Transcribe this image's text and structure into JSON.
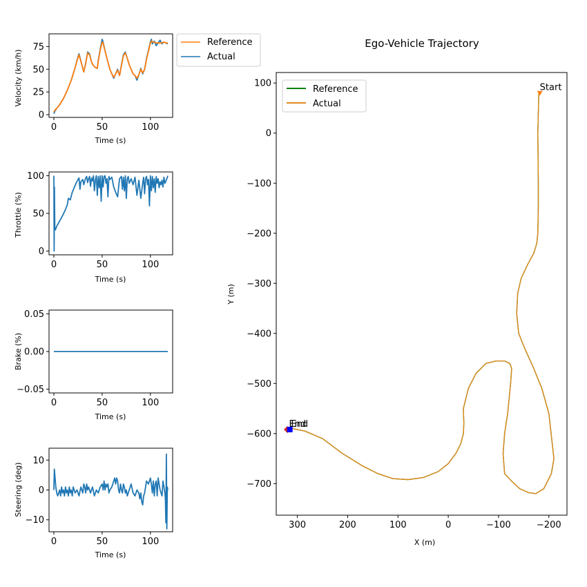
{
  "colors": {
    "reference": "#ff7f0e",
    "actual": "#1f77b4",
    "ref_traj": "#008000",
    "act_traj": "#e08a1e",
    "start_marker": "#ff7f0e",
    "end_actual": "#0000ff",
    "end_ref": "#d62728"
  },
  "chart_data": [
    {
      "type": "line",
      "id": "velocity",
      "title": "",
      "xlabel": "Time (s)",
      "ylabel": "Velocity (km/h)",
      "xlim": [
        -5,
        123
      ],
      "ylim": [
        -3,
        89
      ],
      "xticks": [
        0,
        50,
        100
      ],
      "yticks": [
        0,
        25,
        50,
        75
      ],
      "legend": [
        "Reference",
        "Actual"
      ],
      "series": [
        {
          "name": "Actual",
          "x": [
            0,
            1,
            3,
            6,
            10,
            14,
            18,
            22,
            25,
            26,
            27,
            29,
            31,
            33,
            35,
            37,
            39,
            41,
            43,
            45,
            46,
            48,
            50,
            51,
            52,
            54,
            56,
            58,
            60,
            62,
            64,
            66,
            68,
            70,
            72,
            74,
            76,
            78,
            80,
            82,
            84,
            86,
            88,
            90,
            92,
            94,
            96,
            98,
            100,
            101,
            102,
            104,
            106,
            108,
            110,
            112,
            114,
            116,
            118
          ],
          "y": [
            1,
            4,
            7,
            11,
            18,
            27,
            38,
            52,
            64,
            67,
            63,
            55,
            47,
            57,
            69,
            67,
            58,
            54,
            52,
            51,
            60,
            72,
            83,
            80,
            75,
            66,
            58,
            50,
            45,
            40,
            45,
            50,
            43,
            55,
            66,
            69,
            62,
            55,
            50,
            45,
            43,
            38,
            44,
            51,
            45,
            50,
            62,
            71,
            80,
            83,
            78,
            81,
            76,
            79,
            82,
            78,
            80,
            79,
            78
          ]
        },
        {
          "name": "Reference",
          "x": [
            0,
            1,
            3,
            6,
            10,
            14,
            18,
            22,
            25,
            26,
            27,
            29,
            31,
            33,
            35,
            37,
            39,
            41,
            43,
            45,
            46,
            48,
            50,
            51,
            52,
            54,
            56,
            58,
            60,
            62,
            64,
            66,
            68,
            70,
            72,
            74,
            76,
            78,
            80,
            82,
            84,
            86,
            88,
            90,
            92,
            94,
            96,
            98,
            100,
            101,
            102,
            104,
            106,
            108,
            110,
            112,
            114,
            116,
            118
          ],
          "y": [
            3,
            5,
            7,
            11,
            18,
            27,
            38,
            52,
            63,
            66,
            62,
            55,
            47,
            56,
            68,
            66,
            58,
            54,
            52,
            51,
            59,
            71,
            80,
            79,
            74,
            66,
            58,
            50,
            45,
            41,
            45,
            49,
            43,
            54,
            65,
            68,
            62,
            55,
            50,
            45,
            43,
            40,
            44,
            50,
            46,
            50,
            61,
            70,
            79,
            81,
            80,
            80,
            79,
            79,
            79,
            79,
            80,
            79,
            79
          ]
        }
      ]
    },
    {
      "type": "line",
      "id": "throttle",
      "xlabel": "Time (s)",
      "ylabel": "Throttle (%)",
      "xlim": [
        -5,
        123
      ],
      "ylim": [
        -5,
        105
      ],
      "xticks": [
        0,
        50,
        100
      ],
      "yticks": [
        0,
        50,
        100
      ],
      "series": [
        {
          "name": "Actual",
          "x": [
            0,
            0.3,
            0.6,
            1,
            1.5,
            3,
            6,
            9,
            12,
            14,
            15,
            17,
            19,
            21,
            23,
            25,
            26,
            27,
            28,
            30,
            31,
            32,
            33,
            34,
            35,
            36,
            37,
            38,
            39,
            40,
            41,
            42,
            43,
            44,
            45,
            46,
            47,
            48,
            49,
            50,
            51,
            52,
            53,
            54,
            55,
            56,
            57,
            58,
            60,
            62,
            64,
            66,
            68,
            70,
            71,
            72,
            73,
            74,
            75,
            76,
            77,
            78,
            80,
            82,
            84,
            86,
            88,
            90,
            92,
            93,
            94,
            95,
            96,
            97,
            98,
            99,
            100,
            101,
            102,
            103,
            104,
            105,
            106,
            107,
            108,
            109,
            110,
            111,
            112,
            113,
            114,
            115,
            116,
            117,
            118
          ],
          "y": [
            100,
            0,
            85,
            30,
            28,
            33,
            40,
            47,
            55,
            62,
            70,
            68,
            78,
            84,
            90,
            95,
            97,
            82,
            92,
            95,
            88,
            93,
            97,
            99,
            91,
            96,
            99,
            86,
            97,
            93,
            100,
            80,
            94,
            100,
            74,
            99,
            84,
            100,
            66,
            100,
            85,
            99,
            100,
            90,
            96,
            72,
            99,
            95,
            98,
            85,
            78,
            72,
            96,
            99,
            82,
            98,
            80,
            100,
            70,
            96,
            99,
            90,
            96,
            88,
            98,
            74,
            94,
            70,
            90,
            98,
            76,
            96,
            99,
            88,
            95,
            60,
            100,
            80,
            99,
            84,
            96,
            78,
            99,
            90,
            96,
            84,
            92,
            88,
            94,
            85,
            98,
            90,
            93,
            96,
            100
          ]
        }
      ]
    },
    {
      "type": "line",
      "id": "brake",
      "xlabel": "Time (s)",
      "ylabel": "Brake (%)",
      "xlim": [
        -5,
        123
      ],
      "ylim": [
        -0.055,
        0.055
      ],
      "xticks": [
        0,
        50,
        100
      ],
      "yticks": [
        -0.05,
        0.0,
        0.05
      ],
      "yticklabels": [
        "−0.05",
        "0.00",
        "0.05"
      ],
      "series": [
        {
          "name": "Actual",
          "x": [
            0,
            118
          ],
          "y": [
            0,
            0
          ]
        }
      ]
    },
    {
      "type": "line",
      "id": "steering",
      "xlabel": "Time (s)",
      "ylabel": "Steering (deg)",
      "xlim": [
        -5,
        123
      ],
      "ylim": [
        -14,
        14
      ],
      "xticks": [
        0,
        50,
        100
      ],
      "yticks": [
        -10,
        0,
        10
      ],
      "yticklabels": [
        "−10",
        "0",
        "10"
      ],
      "series": [
        {
          "name": "Actual",
          "x": [
            0,
            0.5,
            1,
            1.5,
            2,
            3,
            4,
            5,
            6,
            7,
            8,
            9,
            10,
            11,
            12,
            13,
            14,
            15,
            16,
            17,
            18,
            19,
            20,
            22,
            24,
            26,
            28,
            30,
            31,
            32,
            33,
            34,
            35,
            36,
            38,
            40,
            42,
            44,
            46,
            48,
            50,
            51,
            52,
            53,
            54,
            55,
            56,
            57,
            58,
            60,
            62,
            63,
            64,
            65,
            66,
            67,
            68,
            69,
            70,
            71,
            72,
            73,
            74,
            75,
            76,
            77,
            78,
            80,
            82,
            84,
            86,
            88,
            89,
            90,
            91,
            92,
            93,
            94,
            95,
            96,
            98,
            100,
            101,
            102,
            103,
            104,
            105,
            106,
            107,
            108,
            110,
            112,
            113,
            114,
            115,
            115.5,
            116,
            116.5,
            117,
            117.5,
            118
          ],
          "y": [
            0,
            7,
            5,
            3,
            1,
            -1,
            -2,
            -1,
            0,
            -2,
            1,
            -1,
            0,
            -2,
            1,
            -1,
            0,
            -2,
            1,
            -1,
            0,
            -2,
            1,
            -1,
            0,
            -2,
            1,
            -1,
            2,
            1,
            -1,
            2,
            0,
            1,
            -1,
            1,
            -2,
            0,
            -1,
            1,
            2,
            0,
            3,
            0,
            2,
            1,
            2,
            -1,
            0,
            1,
            3,
            4,
            2,
            4,
            3,
            0,
            -1,
            2,
            0,
            -1,
            2,
            1,
            -1,
            0,
            -2,
            -1,
            0,
            2,
            -1,
            -2,
            0,
            -1,
            -3,
            -1,
            -4,
            -5,
            -2,
            -1,
            1,
            3,
            2,
            4,
            2,
            -1,
            3,
            -2,
            2,
            3,
            -2,
            4,
            0,
            -2,
            3,
            1,
            -1,
            -3,
            -11,
            12,
            -13,
            1,
            0
          ]
        }
      ]
    },
    {
      "type": "line",
      "id": "trajectory",
      "title": "Ego-Vehicle Trajectory",
      "xlabel": "X (m)",
      "ylabel": "Y (m)",
      "xlim": [
        342,
        -236
      ],
      "ylim": [
        -763,
        121
      ],
      "xticks": [
        300,
        200,
        100,
        0,
        -100,
        -200
      ],
      "xticklabels": [
        "300",
        "200",
        "100",
        "0",
        "−100",
        "−200"
      ],
      "yticks": [
        100,
        0,
        -100,
        -200,
        -300,
        -400,
        -500,
        -600,
        -700
      ],
      "yticklabels": [
        "100",
        "0",
        "−100",
        "−200",
        "−300",
        "−400",
        "−500",
        "−600",
        "−700"
      ],
      "legend": [
        "Reference",
        "Actual"
      ],
      "annotations": [
        {
          "text": "Start",
          "x": -182,
          "y": 80
        },
        {
          "text": "End",
          "x": 318,
          "y": -592
        },
        {
          "text": "End",
          "x": 314,
          "y": -592
        }
      ],
      "series": [
        {
          "name": "Reference",
          "x": [
            -180,
            -178,
            -179,
            -179,
            -178,
            -176,
            -170,
            -158,
            -145,
            -138,
            -136,
            -140,
            -152,
            -170,
            -186,
            -200,
            -210,
            -205,
            -190,
            -174,
            -160,
            -142,
            -126,
            -112,
            -109,
            -112,
            -118,
            -124,
            -126,
            -122,
            -112,
            -95,
            -75,
            -55,
            -40,
            -30,
            -31,
            -30,
            -25,
            -15,
            0,
            20,
            50,
            80,
            110,
            140,
            170,
            210,
            250,
            285,
            310,
            320
          ],
          "y": [
            80,
            0,
            -100,
            -150,
            -200,
            -220,
            -240,
            -262,
            -290,
            -320,
            -360,
            -400,
            -430,
            -470,
            -510,
            -560,
            -650,
            -680,
            -710,
            -720,
            -718,
            -710,
            -695,
            -680,
            -640,
            -600,
            -560,
            -500,
            -470,
            -460,
            -455,
            -455,
            -460,
            -480,
            -510,
            -550,
            -580,
            -600,
            -620,
            -640,
            -660,
            -676,
            -688,
            -692,
            -690,
            -680,
            -665,
            -640,
            -610,
            -595,
            -590,
            -592
          ]
        },
        {
          "name": "Actual",
          "x": [
            -180,
            -178,
            -179,
            -179,
            -178,
            -176,
            -170,
            -158,
            -145,
            -138,
            -136,
            -140,
            -152,
            -170,
            -186,
            -200,
            -210,
            -205,
            -190,
            -174,
            -160,
            -142,
            -126,
            -112,
            -109,
            -112,
            -118,
            -124,
            -126,
            -122,
            -112,
            -95,
            -75,
            -55,
            -40,
            -30,
            -31,
            -30,
            -25,
            -15,
            0,
            20,
            50,
            80,
            110,
            140,
            170,
            210,
            250,
            285,
            310,
            315
          ],
          "y": [
            80,
            0,
            -100,
            -150,
            -200,
            -220,
            -240,
            -262,
            -290,
            -320,
            -360,
            -400,
            -430,
            -470,
            -510,
            -560,
            -650,
            -680,
            -710,
            -720,
            -718,
            -710,
            -695,
            -680,
            -640,
            -600,
            -560,
            -500,
            -470,
            -460,
            -455,
            -455,
            -460,
            -480,
            -510,
            -550,
            -580,
            -600,
            -620,
            -640,
            -660,
            -676,
            -688,
            -692,
            -690,
            -680,
            -665,
            -640,
            -610,
            -595,
            -590,
            -592
          ]
        }
      ]
    }
  ]
}
